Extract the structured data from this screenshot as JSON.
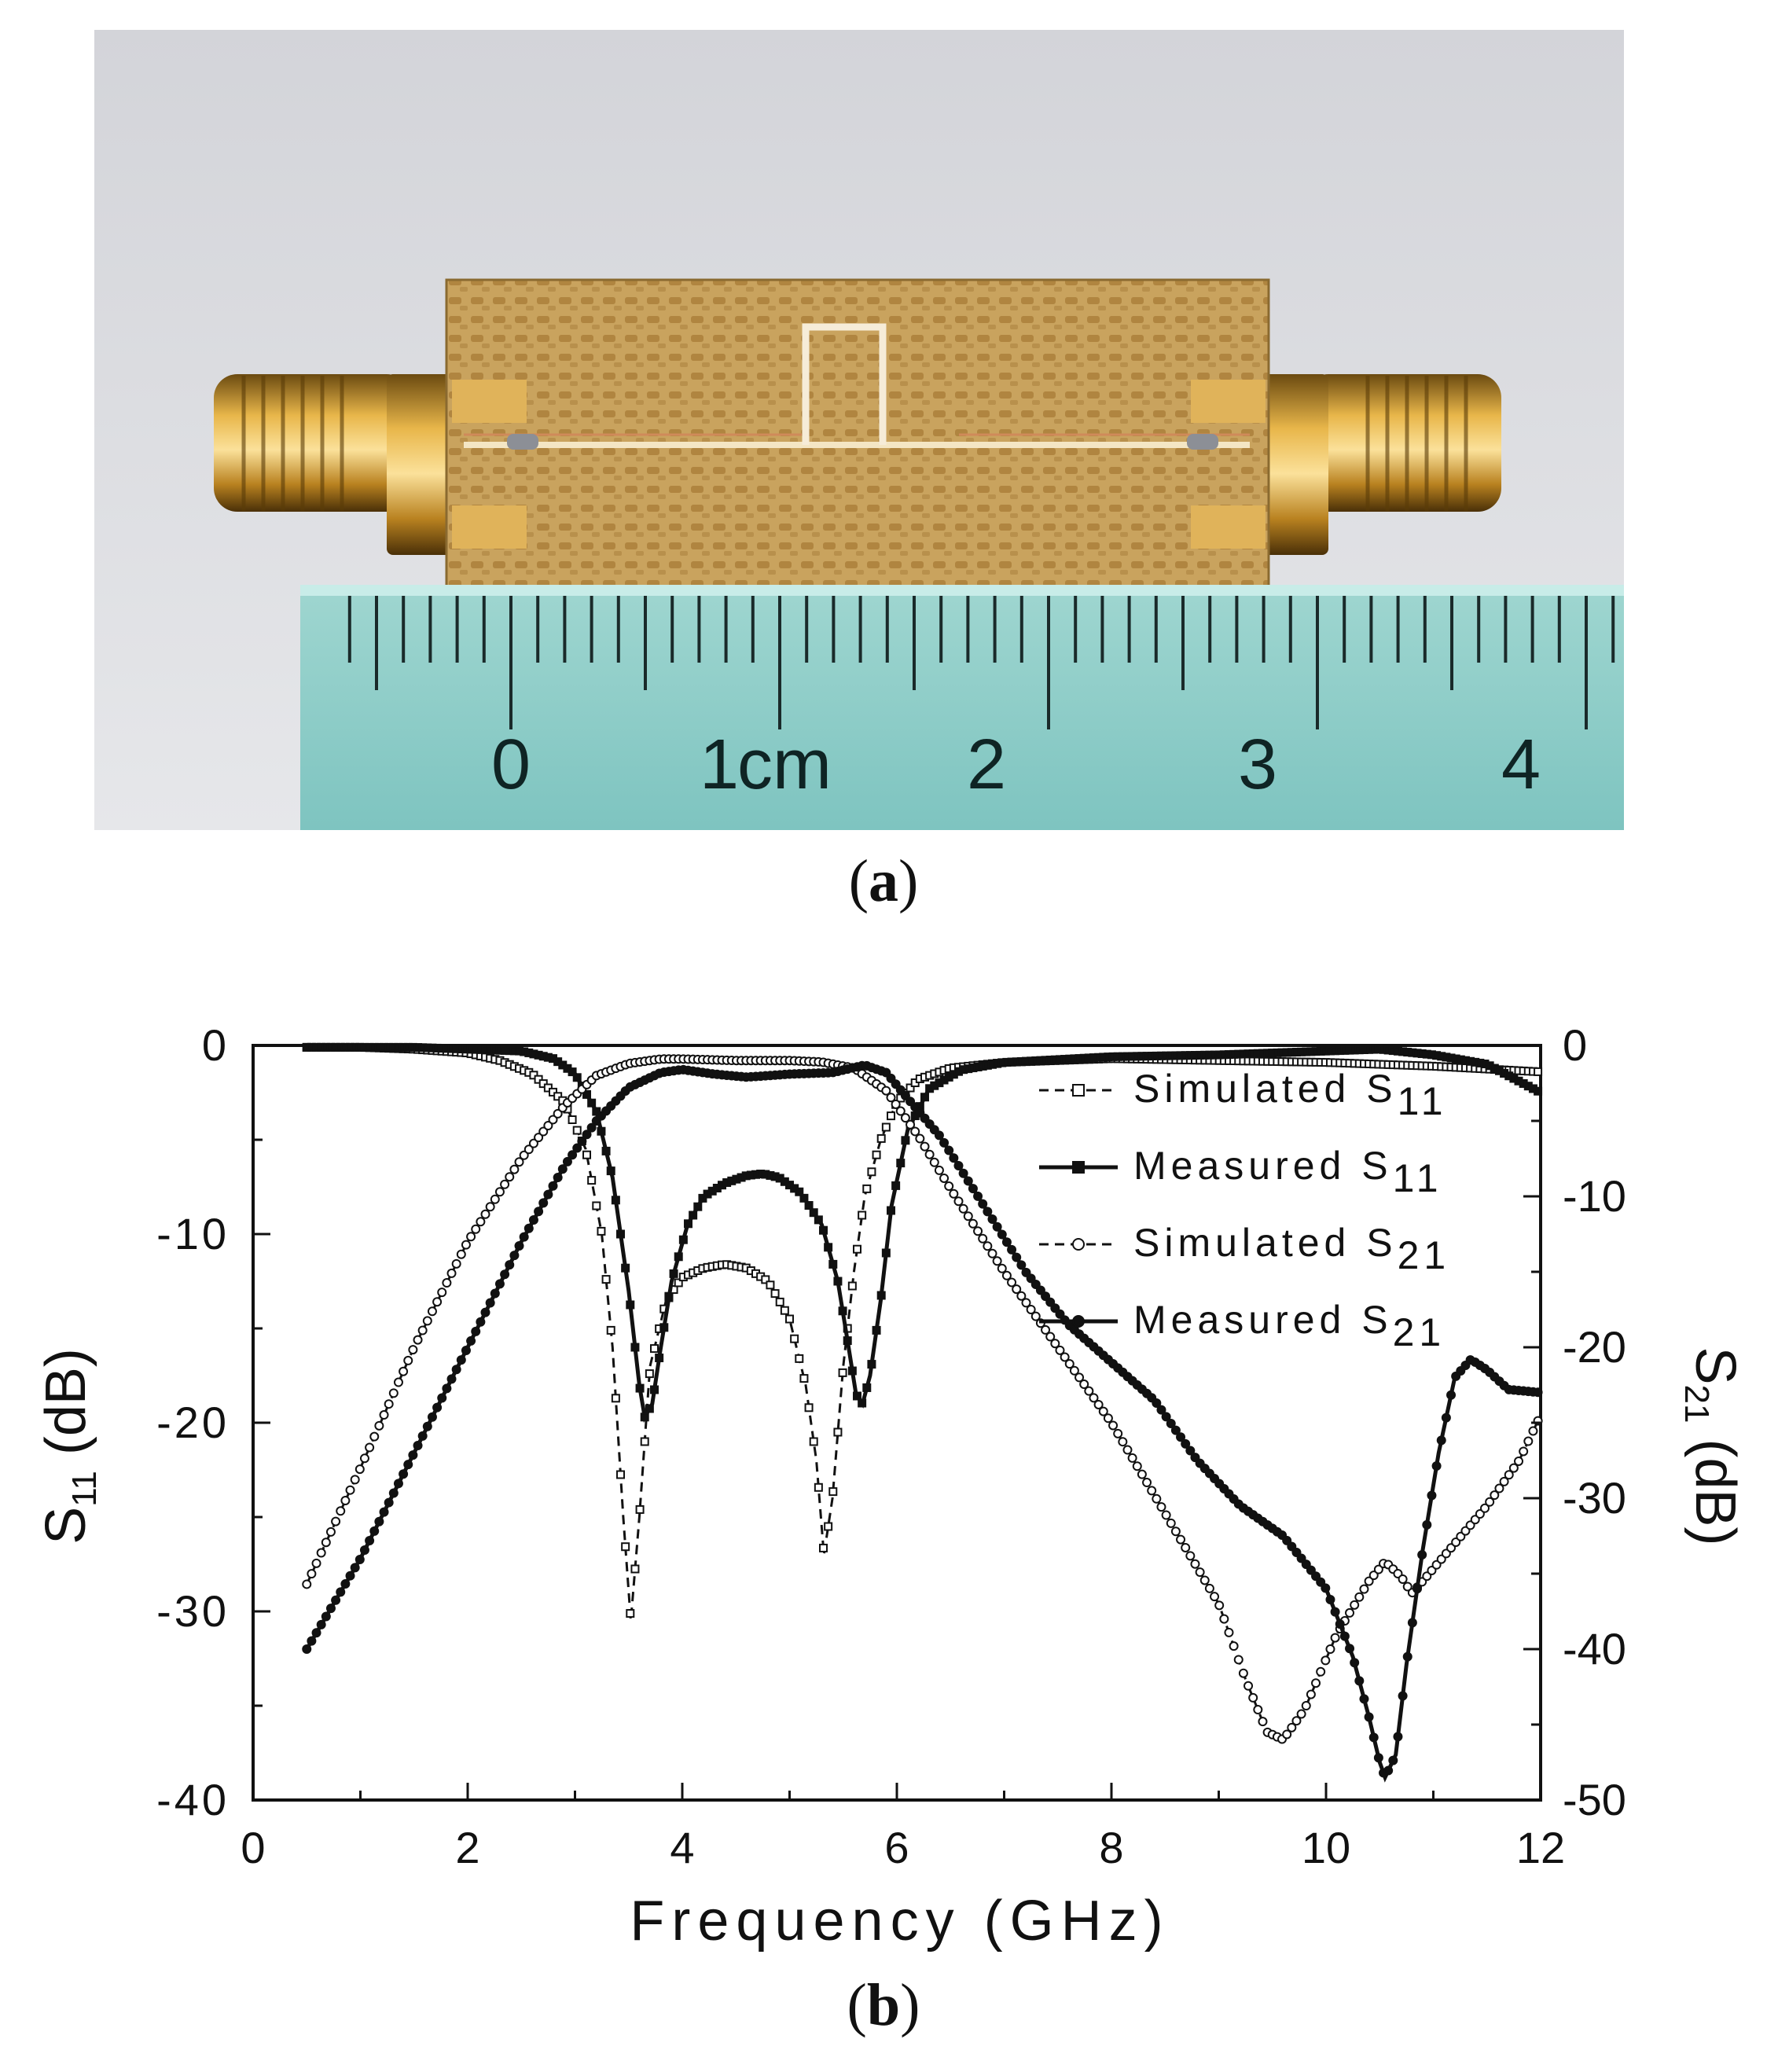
{
  "captions": {
    "a": "a",
    "b": "b"
  },
  "photo": {
    "ruler_numbers": [
      "0",
      "1",
      "2",
      "3",
      "4"
    ],
    "ruler_unit": "cm"
  },
  "chart_data": {
    "type": "line",
    "xlabel": "Frequency (GHz)",
    "ylabel_left": {
      "base": "S",
      "sub": "11",
      "unit": " (dB)"
    },
    "ylabel_right": {
      "base": "S",
      "sub": "21",
      "unit": " (dB)"
    },
    "xlim": [
      0,
      12
    ],
    "ylim_left": [
      -40,
      0
    ],
    "ylim_right": [
      -50,
      0
    ],
    "xticks": [
      0,
      2,
      4,
      6,
      8,
      10,
      12
    ],
    "yticks_left": [
      0,
      -10,
      -20,
      -30,
      -40
    ],
    "yticks_right": [
      0,
      -10,
      -20,
      -30,
      -40,
      -50
    ],
    "legend_position": "top-right",
    "series": [
      {
        "name": "Simulated S11",
        "label_base": "Simulated S",
        "label_sub": "11",
        "axis": "left",
        "line": "dashed",
        "marker": "open-square",
        "points": [
          [
            0.5,
            -0.1
          ],
          [
            1.0,
            -0.1
          ],
          [
            1.5,
            -0.2
          ],
          [
            2.0,
            -0.4
          ],
          [
            2.3,
            -0.8
          ],
          [
            2.6,
            -1.5
          ],
          [
            2.9,
            -3.0
          ],
          [
            3.1,
            -5.5
          ],
          [
            3.25,
            -10.0
          ],
          [
            3.35,
            -16.0
          ],
          [
            3.45,
            -25.0
          ],
          [
            3.52,
            -30.5
          ],
          [
            3.6,
            -25.0
          ],
          [
            3.7,
            -17.0
          ],
          [
            3.85,
            -13.5
          ],
          [
            4.0,
            -12.3
          ],
          [
            4.2,
            -11.8
          ],
          [
            4.4,
            -11.6
          ],
          [
            4.6,
            -11.8
          ],
          [
            4.8,
            -12.5
          ],
          [
            5.0,
            -14.5
          ],
          [
            5.15,
            -18.0
          ],
          [
            5.25,
            -22.0
          ],
          [
            5.32,
            -27.0
          ],
          [
            5.4,
            -24.0
          ],
          [
            5.5,
            -17.0
          ],
          [
            5.6,
            -12.0
          ],
          [
            5.7,
            -8.0
          ],
          [
            5.85,
            -5.0
          ],
          [
            6.0,
            -3.0
          ],
          [
            6.2,
            -1.8
          ],
          [
            6.5,
            -1.2
          ],
          [
            7.0,
            -0.9
          ],
          [
            8.0,
            -0.7
          ],
          [
            9.0,
            -0.8
          ],
          [
            10.0,
            -0.9
          ],
          [
            11.0,
            -1.1
          ],
          [
            12.0,
            -1.4
          ]
        ]
      },
      {
        "name": "Measured S11",
        "label_base": "Measured S",
        "label_sub": "11",
        "axis": "left",
        "line": "solid",
        "marker": "filled-square",
        "points": [
          [
            0.5,
            -0.1
          ],
          [
            1.0,
            -0.1
          ],
          [
            1.5,
            -0.1
          ],
          [
            2.0,
            -0.2
          ],
          [
            2.5,
            -0.3
          ],
          [
            2.8,
            -0.7
          ],
          [
            3.0,
            -1.5
          ],
          [
            3.2,
            -3.5
          ],
          [
            3.35,
            -7.0
          ],
          [
            3.5,
            -13.0
          ],
          [
            3.6,
            -18.0
          ],
          [
            3.65,
            -19.7
          ],
          [
            3.72,
            -19.0
          ],
          [
            3.8,
            -16.0
          ],
          [
            3.9,
            -12.5
          ],
          [
            4.05,
            -9.5
          ],
          [
            4.2,
            -8.0
          ],
          [
            4.4,
            -7.3
          ],
          [
            4.6,
            -6.9
          ],
          [
            4.75,
            -6.8
          ],
          [
            4.9,
            -7.0
          ],
          [
            5.1,
            -7.8
          ],
          [
            5.3,
            -9.5
          ],
          [
            5.45,
            -12.5
          ],
          [
            5.55,
            -16.0
          ],
          [
            5.62,
            -18.5
          ],
          [
            5.68,
            -19.0
          ],
          [
            5.75,
            -17.5
          ],
          [
            5.85,
            -13.5
          ],
          [
            5.95,
            -8.5
          ],
          [
            6.1,
            -4.5
          ],
          [
            6.3,
            -2.3
          ],
          [
            6.6,
            -1.3
          ],
          [
            7.0,
            -0.9
          ],
          [
            8.0,
            -0.6
          ],
          [
            9.0,
            -0.5
          ],
          [
            10.0,
            -0.3
          ],
          [
            10.5,
            -0.2
          ],
          [
            11.0,
            -0.5
          ],
          [
            11.5,
            -1.0
          ],
          [
            12.0,
            -2.5
          ]
        ]
      },
      {
        "name": "Simulated S21",
        "label_base": "Simulated S",
        "label_sub": "21",
        "axis": "right",
        "line": "dashed",
        "marker": "open-circle",
        "points": [
          [
            0.5,
            -35.7
          ],
          [
            1.0,
            -28.0
          ],
          [
            1.5,
            -20.0
          ],
          [
            2.0,
            -13.0
          ],
          [
            2.5,
            -7.5
          ],
          [
            2.9,
            -4.0
          ],
          [
            3.2,
            -2.0
          ],
          [
            3.5,
            -1.2
          ],
          [
            3.8,
            -0.9
          ],
          [
            4.0,
            -0.9
          ],
          [
            4.5,
            -1.0
          ],
          [
            5.0,
            -1.0
          ],
          [
            5.3,
            -1.1
          ],
          [
            5.6,
            -1.5
          ],
          [
            5.9,
            -3.0
          ],
          [
            6.2,
            -6.0
          ],
          [
            6.5,
            -9.5
          ],
          [
            7.0,
            -15.0
          ],
          [
            7.5,
            -20.0
          ],
          [
            8.0,
            -25.0
          ],
          [
            8.5,
            -31.0
          ],
          [
            9.0,
            -37.0
          ],
          [
            9.25,
            -42.0
          ],
          [
            9.45,
            -45.5
          ],
          [
            9.6,
            -46.0
          ],
          [
            9.8,
            -44.0
          ],
          [
            10.1,
            -39.0
          ],
          [
            10.4,
            -35.5
          ],
          [
            10.55,
            -34.2
          ],
          [
            10.7,
            -35.2
          ],
          [
            10.8,
            -36.3
          ],
          [
            10.9,
            -35.5
          ],
          [
            11.2,
            -33.0
          ],
          [
            11.5,
            -30.5
          ],
          [
            11.8,
            -27.5
          ],
          [
            12.0,
            -24.5
          ]
        ]
      },
      {
        "name": "Measured S21",
        "label_base": "Measured S",
        "label_sub": "21",
        "axis": "right",
        "line": "solid",
        "marker": "filled-circle",
        "points": [
          [
            0.5,
            -40.0
          ],
          [
            1.0,
            -34.0
          ],
          [
            1.5,
            -27.0
          ],
          [
            2.0,
            -20.0
          ],
          [
            2.5,
            -13.0
          ],
          [
            2.9,
            -8.0
          ],
          [
            3.2,
            -5.0
          ],
          [
            3.5,
            -2.8
          ],
          [
            3.8,
            -1.8
          ],
          [
            4.0,
            -1.6
          ],
          [
            4.3,
            -1.9
          ],
          [
            4.6,
            -2.1
          ],
          [
            5.0,
            -1.9
          ],
          [
            5.4,
            -1.8
          ],
          [
            5.7,
            -1.3
          ],
          [
            5.9,
            -1.8
          ],
          [
            6.1,
            -3.5
          ],
          [
            6.4,
            -6.0
          ],
          [
            6.8,
            -10.5
          ],
          [
            7.2,
            -15.0
          ],
          [
            7.6,
            -18.5
          ],
          [
            8.0,
            -21.0
          ],
          [
            8.4,
            -23.5
          ],
          [
            8.8,
            -27.5
          ],
          [
            9.2,
            -30.5
          ],
          [
            9.6,
            -32.5
          ],
          [
            10.0,
            -36.0
          ],
          [
            10.25,
            -40.5
          ],
          [
            10.4,
            -44.5
          ],
          [
            10.5,
            -47.5
          ],
          [
            10.55,
            -48.5
          ],
          [
            10.65,
            -47.0
          ],
          [
            10.75,
            -41.0
          ],
          [
            10.9,
            -33.5
          ],
          [
            11.05,
            -27.0
          ],
          [
            11.2,
            -22.0
          ],
          [
            11.35,
            -20.8
          ],
          [
            11.5,
            -21.5
          ],
          [
            11.7,
            -22.8
          ],
          [
            12.0,
            -23.0
          ]
        ]
      }
    ]
  }
}
